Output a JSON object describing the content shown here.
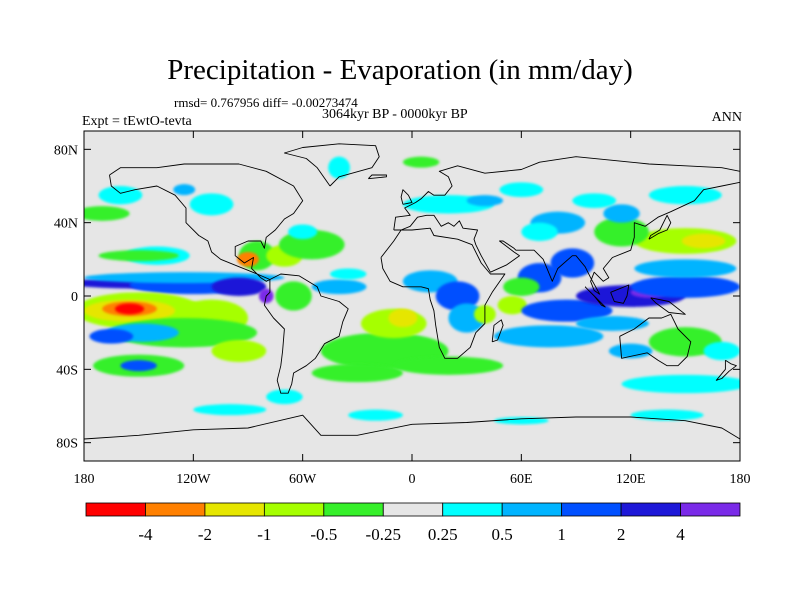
{
  "header": {
    "title": "Precipitation - Evaporation (in mm/day)",
    "stats": "rmsd= 0.767956 diff= -0.00273474",
    "period": "3064kyr BP - 0000kyr BP",
    "experiment": "Expt = tEwtO-tevta",
    "season": "ANN"
  },
  "chart_data": {
    "type": "heatmap",
    "xlim": [
      -180,
      180
    ],
    "ylim": [
      -90,
      90
    ],
    "x_ticks": [
      {
        "value": -180,
        "label": "180"
      },
      {
        "value": -120,
        "label": "120W"
      },
      {
        "value": -60,
        "label": "60W"
      },
      {
        "value": 0,
        "label": "0"
      },
      {
        "value": 60,
        "label": "60E"
      },
      {
        "value": 120,
        "label": "120E"
      },
      {
        "value": 180,
        "label": "180"
      }
    ],
    "y_ticks": [
      {
        "value": 80,
        "label": "80N"
      },
      {
        "value": 40,
        "label": "40N"
      },
      {
        "value": 0,
        "label": "0"
      },
      {
        "value": -40,
        "label": "40S"
      },
      {
        "value": -80,
        "label": "80S"
      }
    ],
    "colorbar": {
      "colors": [
        "#ff0000",
        "#ff8000",
        "#e6e600",
        "#a6ff00",
        "#36f02a",
        "#e6e6e6",
        "#00ffff",
        "#00b4ff",
        "#0050ff",
        "#1e18d8",
        "#7a2ae8"
      ],
      "labels": [
        "-4",
        "-2",
        "-1",
        "-0.5",
        "-0.25",
        "0.25",
        "0.5",
        "1",
        "2",
        "4"
      ]
    },
    "background_color": "#e6e6e6",
    "regions": [
      {
        "bin": 6,
        "lon": -140,
        "lat": 22,
        "rlon": 18,
        "rlat": 5
      },
      {
        "bin": 4,
        "lon": -150,
        "lat": 22,
        "rlon": 22,
        "rlat": 3
      },
      {
        "bin": 9,
        "lon": -145,
        "lat": 7,
        "rlon": 45,
        "rlat": 3
      },
      {
        "bin": 8,
        "lon": -120,
        "lat": 6,
        "rlon": 35,
        "rlat": 5
      },
      {
        "bin": 7,
        "lon": -125,
        "lat": 10,
        "rlon": 55,
        "rlat": 3
      },
      {
        "bin": 9,
        "lon": -95,
        "lat": 5,
        "rlon": 15,
        "rlat": 5
      },
      {
        "bin": 10,
        "lon": -80,
        "lat": 0,
        "rlon": 4,
        "rlat": 4
      },
      {
        "bin": 3,
        "lon": -150,
        "lat": -8,
        "rlon": 35,
        "rlat": 10
      },
      {
        "bin": 2,
        "lon": -155,
        "lat": -8,
        "rlon": 25,
        "rlat": 6
      },
      {
        "bin": 1,
        "lon": -155,
        "lat": -7,
        "rlon": 15,
        "rlat": 4
      },
      {
        "bin": 0,
        "lon": -155,
        "lat": -7,
        "rlon": 8,
        "rlat": 3
      },
      {
        "bin": 3,
        "lon": -110,
        "lat": -12,
        "rlon": 20,
        "rlat": 10
      },
      {
        "bin": 4,
        "lon": -125,
        "lat": -20,
        "rlon": 40,
        "rlat": 8
      },
      {
        "bin": 7,
        "lon": -148,
        "lat": -20,
        "rlon": 20,
        "rlat": 5
      },
      {
        "bin": 8,
        "lon": -165,
        "lat": -22,
        "rlon": 12,
        "rlat": 4
      },
      {
        "bin": 4,
        "lon": -150,
        "lat": -38,
        "rlon": 25,
        "rlat": 6
      },
      {
        "bin": 8,
        "lon": -150,
        "lat": -38,
        "rlon": 10,
        "rlat": 3
      },
      {
        "bin": 3,
        "lon": -95,
        "lat": -30,
        "rlon": 15,
        "rlat": 6
      },
      {
        "bin": 4,
        "lon": -85,
        "lat": 22,
        "rlon": 10,
        "rlat": 8
      },
      {
        "bin": 1,
        "lon": -90,
        "lat": 20,
        "rlon": 6,
        "rlat": 4
      },
      {
        "bin": 3,
        "lon": -70,
        "lat": 22,
        "rlon": 10,
        "rlat": 6
      },
      {
        "bin": 4,
        "lon": -55,
        "lat": 28,
        "rlon": 18,
        "rlat": 8
      },
      {
        "bin": 6,
        "lon": -60,
        "lat": 35,
        "rlon": 8,
        "rlat": 4
      },
      {
        "bin": 7,
        "lon": -40,
        "lat": 5,
        "rlon": 15,
        "rlat": 4
      },
      {
        "bin": 6,
        "lon": -35,
        "lat": 12,
        "rlon": 10,
        "rlat": 3
      },
      {
        "bin": 4,
        "lon": -65,
        "lat": 0,
        "rlon": 10,
        "rlat": 8
      },
      {
        "bin": 4,
        "lon": -15,
        "lat": -30,
        "rlon": 35,
        "rlat": 10
      },
      {
        "bin": 3,
        "lon": -10,
        "lat": -15,
        "rlon": 18,
        "rlat": 8
      },
      {
        "bin": 2,
        "lon": -5,
        "lat": -12,
        "rlon": 8,
        "rlat": 5
      },
      {
        "bin": 4,
        "lon": -30,
        "lat": -42,
        "rlon": 25,
        "rlat": 5
      },
      {
        "bin": 7,
        "lon": 10,
        "lat": 8,
        "rlon": 15,
        "rlat": 6
      },
      {
        "bin": 8,
        "lon": 25,
        "lat": 0,
        "rlon": 12,
        "rlat": 8
      },
      {
        "bin": 7,
        "lon": 30,
        "lat": -12,
        "rlon": 10,
        "rlat": 8
      },
      {
        "bin": 3,
        "lon": 40,
        "lat": -10,
        "rlon": 6,
        "rlat": 5
      },
      {
        "bin": 6,
        "lon": 20,
        "lat": 50,
        "rlon": 25,
        "rlat": 5
      },
      {
        "bin": 7,
        "lon": 40,
        "lat": 52,
        "rlon": 10,
        "rlat": 3
      },
      {
        "bin": 6,
        "lon": 60,
        "lat": 58,
        "rlon": 12,
        "rlat": 4
      },
      {
        "bin": 7,
        "lon": 80,
        "lat": 40,
        "rlon": 15,
        "rlat": 6
      },
      {
        "bin": 6,
        "lon": 70,
        "lat": 35,
        "rlon": 10,
        "rlat": 5
      },
      {
        "bin": 8,
        "lon": 88,
        "lat": 18,
        "rlon": 12,
        "rlat": 8
      },
      {
        "bin": 8,
        "lon": 70,
        "lat": 10,
        "rlon": 12,
        "rlat": 8
      },
      {
        "bin": 4,
        "lon": 60,
        "lat": 5,
        "rlon": 10,
        "rlat": 5
      },
      {
        "bin": 3,
        "lon": 55,
        "lat": -5,
        "rlon": 8,
        "rlat": 5
      },
      {
        "bin": 8,
        "lon": 85,
        "lat": -8,
        "rlon": 25,
        "rlat": 6
      },
      {
        "bin": 9,
        "lon": 120,
        "lat": 0,
        "rlon": 30,
        "rlat": 6
      },
      {
        "bin": 10,
        "lon": 130,
        "lat": 2,
        "rlon": 10,
        "rlat": 3
      },
      {
        "bin": 8,
        "lon": 150,
        "lat": 5,
        "rlon": 30,
        "rlat": 6
      },
      {
        "bin": 7,
        "lon": 150,
        "lat": 15,
        "rlon": 28,
        "rlat": 5
      },
      {
        "bin": 7,
        "lon": 75,
        "lat": -22,
        "rlon": 30,
        "rlat": 6
      },
      {
        "bin": 7,
        "lon": 110,
        "lat": -15,
        "rlon": 20,
        "rlat": 4
      },
      {
        "bin": 3,
        "lon": 150,
        "lat": 30,
        "rlon": 28,
        "rlat": 7
      },
      {
        "bin": 2,
        "lon": 160,
        "lat": 30,
        "rlon": 12,
        "rlat": 4
      },
      {
        "bin": 4,
        "lon": 115,
        "lat": 35,
        "rlon": 15,
        "rlat": 8
      },
      {
        "bin": 7,
        "lon": 115,
        "lat": 45,
        "rlon": 10,
        "rlat": 5
      },
      {
        "bin": 6,
        "lon": 100,
        "lat": 52,
        "rlon": 12,
        "rlat": 4
      },
      {
        "bin": 6,
        "lon": 150,
        "lat": 55,
        "rlon": 20,
        "rlat": 5
      },
      {
        "bin": 7,
        "lon": 120,
        "lat": -30,
        "rlon": 12,
        "rlat": 4
      },
      {
        "bin": 4,
        "lon": 150,
        "lat": -25,
        "rlon": 20,
        "rlat": 8
      },
      {
        "bin": 6,
        "lon": 170,
        "lat": -30,
        "rlon": 10,
        "rlat": 5
      },
      {
        "bin": 4,
        "lon": 20,
        "lat": -38,
        "rlon": 30,
        "rlat": 5
      },
      {
        "bin": 6,
        "lon": 150,
        "lat": -48,
        "rlon": 35,
        "rlat": 5
      },
      {
        "bin": 4,
        "lon": -170,
        "lat": 45,
        "rlon": 15,
        "rlat": 4
      },
      {
        "bin": 6,
        "lon": -160,
        "lat": 55,
        "rlon": 12,
        "rlat": 5
      },
      {
        "bin": 6,
        "lon": -110,
        "lat": 50,
        "rlon": 12,
        "rlat": 6
      },
      {
        "bin": 7,
        "lon": -125,
        "lat": 58,
        "rlon": 6,
        "rlat": 3
      },
      {
        "bin": 6,
        "lon": -40,
        "lat": 70,
        "rlon": 6,
        "rlat": 6
      },
      {
        "bin": 4,
        "lon": 5,
        "lat": 73,
        "rlon": 10,
        "rlat": 3
      },
      {
        "bin": 6,
        "lon": -70,
        "lat": -55,
        "rlon": 10,
        "rlat": 4
      },
      {
        "bin": 6,
        "lon": -100,
        "lat": -62,
        "rlon": 20,
        "rlat": 3
      },
      {
        "bin": 6,
        "lon": -20,
        "lat": -65,
        "rlon": 15,
        "rlat": 3
      },
      {
        "bin": 6,
        "lon": 60,
        "lat": -68,
        "rlon": 15,
        "rlat": 2
      },
      {
        "bin": 6,
        "lon": 140,
        "lat": -65,
        "rlon": 20,
        "rlat": 3
      }
    ]
  }
}
